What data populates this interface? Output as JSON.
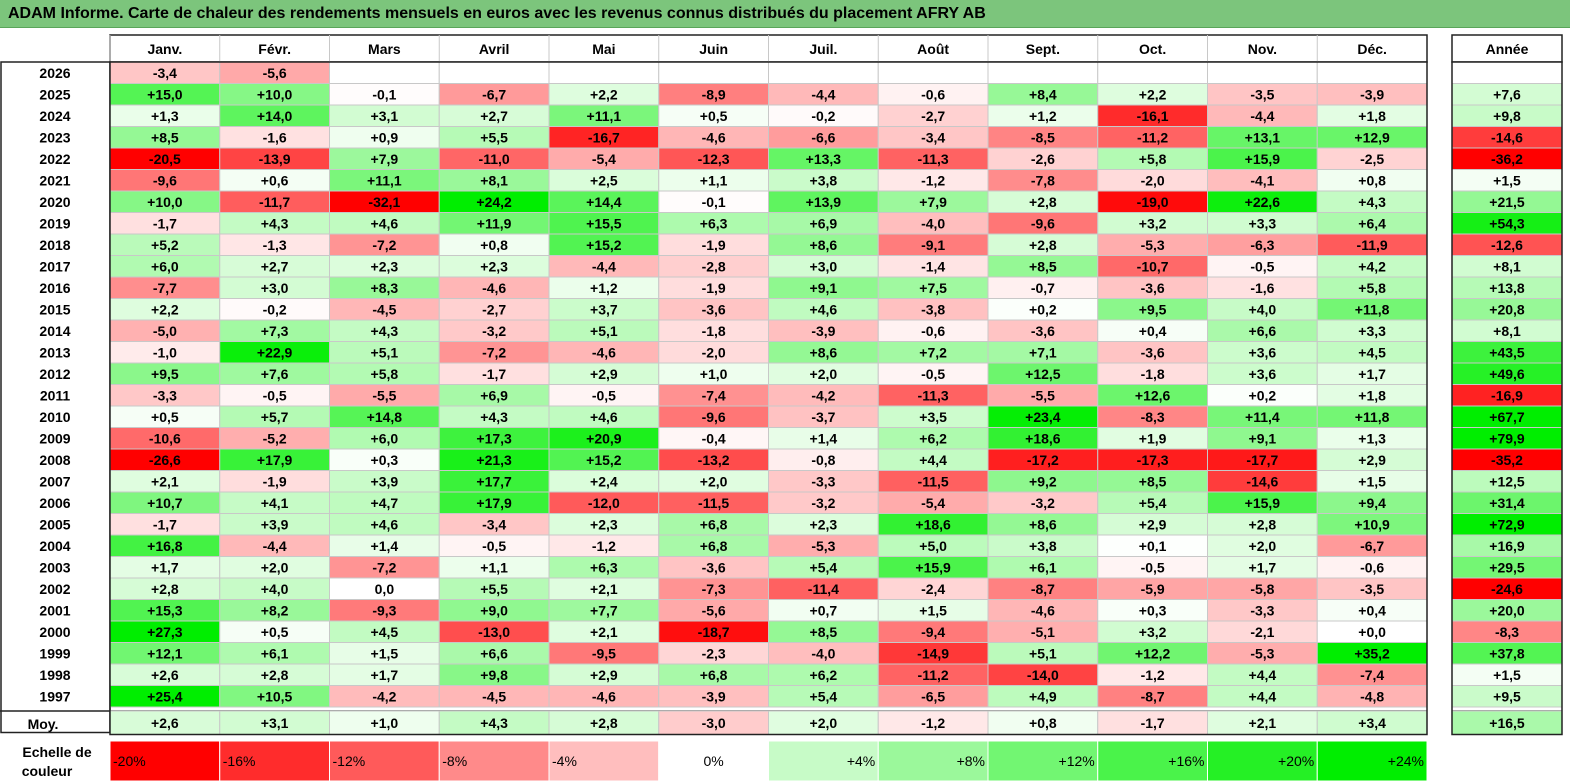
{
  "title": "ADAM Informe. Carte de chaleur des rendements mensuels en euros avec les revenus connus distribués du placement AFRY AB",
  "chart_data": {
    "type": "heatmap",
    "columns": [
      "Janv.",
      "Févr.",
      "Mars",
      "Avril",
      "Mai",
      "Juin",
      "Juil.",
      "Août",
      "Sept.",
      "Oct.",
      "Nov.",
      "Déc."
    ],
    "year_column_label": "Année",
    "rows": [
      {
        "label": "2026",
        "values": [
          "-3,4",
          "-5,6",
          "",
          "",
          "",
          "",
          "",
          "",
          "",
          "",
          "",
          ""
        ],
        "year": ""
      },
      {
        "label": "2025",
        "values": [
          "+15,0",
          "+10,0",
          "-0,1",
          "-6,7",
          "+2,2",
          "-8,9",
          "-4,4",
          "-0,6",
          "+8,4",
          "+2,2",
          "-3,5",
          "-3,9"
        ],
        "year": "+7,6"
      },
      {
        "label": "2024",
        "values": [
          "+1,3",
          "+14,0",
          "+3,1",
          "+2,7",
          "+11,1",
          "+0,5",
          "-0,2",
          "-2,7",
          "+1,2",
          "-16,1",
          "-4,4",
          "+1,8"
        ],
        "year": "+9,8"
      },
      {
        "label": "2023",
        "values": [
          "+8,5",
          "-1,6",
          "+0,9",
          "+5,5",
          "-16,7",
          "-4,6",
          "-6,6",
          "-3,4",
          "-8,5",
          "-11,2",
          "+13,1",
          "+12,9"
        ],
        "year": "-14,6"
      },
      {
        "label": "2022",
        "values": [
          "-20,5",
          "-13,9",
          "+7,9",
          "-11,0",
          "-5,4",
          "-12,3",
          "+13,3",
          "-11,3",
          "-2,6",
          "+5,8",
          "+15,9",
          "-2,5"
        ],
        "year": "-36,2"
      },
      {
        "label": "2021",
        "values": [
          "-9,6",
          "+0,6",
          "+11,1",
          "+8,1",
          "+2,5",
          "+1,1",
          "+3,8",
          "-1,2",
          "-7,8",
          "-2,0",
          "-4,1",
          "+0,8"
        ],
        "year": "+1,5"
      },
      {
        "label": "2020",
        "values": [
          "+10,0",
          "-11,7",
          "-32,1",
          "+24,2",
          "+14,4",
          "-0,1",
          "+13,9",
          "+7,9",
          "+2,8",
          "-19,0",
          "+22,6",
          "+4,3"
        ],
        "year": "+21,5"
      },
      {
        "label": "2019",
        "values": [
          "-1,7",
          "+4,3",
          "+4,6",
          "+11,9",
          "+15,5",
          "+6,3",
          "+6,9",
          "-4,0",
          "-9,6",
          "+3,2",
          "+3,3",
          "+6,4"
        ],
        "year": "+54,3"
      },
      {
        "label": "2018",
        "values": [
          "+5,2",
          "-1,3",
          "-7,2",
          "+0,8",
          "+15,2",
          "-1,9",
          "+8,6",
          "-9,1",
          "+2,8",
          "-5,3",
          "-6,3",
          "-11,9"
        ],
        "year": "-12,6"
      },
      {
        "label": "2017",
        "values": [
          "+6,0",
          "+2,7",
          "+2,3",
          "+2,3",
          "-4,4",
          "-2,8",
          "+3,0",
          "-1,4",
          "+8,5",
          "-10,7",
          "-0,5",
          "+4,2"
        ],
        "year": "+8,1"
      },
      {
        "label": "2016",
        "values": [
          "-7,7",
          "+3,0",
          "+8,3",
          "-4,6",
          "+1,2",
          "-1,9",
          "+9,1",
          "+7,5",
          "-0,7",
          "-3,6",
          "-1,6",
          "+5,8"
        ],
        "year": "+13,8"
      },
      {
        "label": "2015",
        "values": [
          "+2,2",
          "-0,2",
          "-4,5",
          "-2,7",
          "+3,7",
          "-3,6",
          "+4,6",
          "-3,8",
          "+0,2",
          "+9,5",
          "+4,0",
          "+11,8"
        ],
        "year": "+20,8"
      },
      {
        "label": "2014",
        "values": [
          "-5,0",
          "+7,3",
          "+4,3",
          "-3,2",
          "+5,1",
          "-1,8",
          "-3,9",
          "-0,6",
          "-3,6",
          "+0,4",
          "+6,6",
          "+3,3"
        ],
        "year": "+8,1"
      },
      {
        "label": "2013",
        "values": [
          "-1,0",
          "+22,9",
          "+5,1",
          "-7,2",
          "-4,6",
          "-2,0",
          "+8,6",
          "+7,2",
          "+7,1",
          "-3,6",
          "+3,6",
          "+4,5"
        ],
        "year": "+43,5"
      },
      {
        "label": "2012",
        "values": [
          "+9,5",
          "+7,6",
          "+5,8",
          "-1,7",
          "+2,9",
          "+1,0",
          "+2,0",
          "-0,5",
          "+12,5",
          "-1,8",
          "+3,6",
          "+1,7"
        ],
        "year": "+49,6"
      },
      {
        "label": "2011",
        "values": [
          "-3,3",
          "-0,5",
          "-5,5",
          "+6,9",
          "-0,5",
          "-7,4",
          "-4,2",
          "-11,3",
          "-5,5",
          "+12,6",
          "+0,2",
          "+1,8"
        ],
        "year": "-16,9"
      },
      {
        "label": "2010",
        "values": [
          "+0,5",
          "+5,7",
          "+14,8",
          "+4,3",
          "+4,6",
          "-9,6",
          "-3,7",
          "+3,5",
          "+23,4",
          "-8,3",
          "+11,4",
          "+11,8"
        ],
        "year": "+67,7"
      },
      {
        "label": "2009",
        "values": [
          "-10,6",
          "-5,2",
          "+6,0",
          "+17,3",
          "+20,9",
          "-0,4",
          "+1,4",
          "+6,2",
          "+18,6",
          "+1,9",
          "+9,1",
          "+1,3"
        ],
        "year": "+79,9"
      },
      {
        "label": "2008",
        "values": [
          "-26,6",
          "+17,9",
          "+0,3",
          "+21,3",
          "+15,2",
          "-13,2",
          "-0,8",
          "+4,4",
          "-17,2",
          "-17,3",
          "-17,7",
          "+2,9"
        ],
        "year": "-35,2"
      },
      {
        "label": "2007",
        "values": [
          "+2,1",
          "-1,9",
          "+3,9",
          "+17,7",
          "+2,4",
          "+2,0",
          "-3,3",
          "-11,5",
          "+9,2",
          "+8,5",
          "-14,6",
          "+1,5"
        ],
        "year": "+12,5"
      },
      {
        "label": "2006",
        "values": [
          "+10,7",
          "+4,1",
          "+4,7",
          "+17,9",
          "-12,0",
          "-11,5",
          "-3,2",
          "-5,4",
          "-3,2",
          "+5,4",
          "+15,9",
          "+9,4"
        ],
        "year": "+31,4"
      },
      {
        "label": "2005",
        "values": [
          "-1,7",
          "+3,9",
          "+4,6",
          "-3,4",
          "+2,3",
          "+6,8",
          "+2,3",
          "+18,6",
          "+8,6",
          "+2,9",
          "+2,8",
          "+10,9"
        ],
        "year": "+72,9"
      },
      {
        "label": "2004",
        "values": [
          "+16,8",
          "-4,4",
          "+1,4",
          "-0,5",
          "-1,2",
          "+6,8",
          "-5,3",
          "+5,0",
          "+3,8",
          "+0,1",
          "+2,0",
          "-6,7"
        ],
        "year": "+16,9"
      },
      {
        "label": "2003",
        "values": [
          "+1,7",
          "+2,0",
          "-7,2",
          "+1,1",
          "+6,3",
          "-3,6",
          "+5,4",
          "+15,9",
          "+6,1",
          "-0,5",
          "+1,7",
          "-0,6"
        ],
        "year": "+29,5"
      },
      {
        "label": "2002",
        "values": [
          "+2,8",
          "+4,0",
          "0,0",
          "+5,5",
          "+2,1",
          "-7,3",
          "-11,4",
          "-2,4",
          "-8,7",
          "-5,9",
          "-5,8",
          "-3,5"
        ],
        "year": "-24,6"
      },
      {
        "label": "2001",
        "values": [
          "+15,3",
          "+8,2",
          "-9,3",
          "+9,0",
          "+7,7",
          "-5,6",
          "+0,7",
          "+1,5",
          "-4,6",
          "+0,3",
          "-3,3",
          "+0,4"
        ],
        "year": "+20,0"
      },
      {
        "label": "2000",
        "values": [
          "+27,3",
          "+0,5",
          "+4,5",
          "-13,0",
          "+2,1",
          "-18,7",
          "+8,5",
          "-9,4",
          "-5,1",
          "+3,2",
          "-2,1",
          "+0,0"
        ],
        "year": "-8,3"
      },
      {
        "label": "1999",
        "values": [
          "+12,1",
          "+6,1",
          "+1,5",
          "+6,6",
          "-9,5",
          "-2,3",
          "-4,0",
          "-14,9",
          "+5,1",
          "+12,2",
          "-5,3",
          "+35,2"
        ],
        "year": "+37,8"
      },
      {
        "label": "1998",
        "values": [
          "+2,6",
          "+2,8",
          "+1,7",
          "+9,8",
          "+2,9",
          "+6,8",
          "+6,2",
          "-11,2",
          "-14,0",
          "-1,2",
          "+4,4",
          "-7,4"
        ],
        "year": "+1,5"
      },
      {
        "label": "1997",
        "values": [
          "+25,4",
          "+10,5",
          "-4,2",
          "-4,5",
          "-4,6",
          "-3,9",
          "+5,4",
          "-6,5",
          "+4,9",
          "-8,7",
          "+4,4",
          "-4,8"
        ],
        "year": "+9,5"
      }
    ],
    "average": {
      "label": "Moy.",
      "values": [
        "+2,6",
        "+3,1",
        "+1,0",
        "+4,3",
        "+2,8",
        "-3,0",
        "+2,0",
        "-1,2",
        "+0,8",
        "-1,7",
        "+2,1",
        "+3,4"
      ],
      "year": "+16,5"
    },
    "legend": {
      "label_line1": "Echelle de",
      "label_line2": "couleur",
      "steps": [
        {
          "label": "-20%",
          "value": -20
        },
        {
          "label": "-16%",
          "value": -16
        },
        {
          "label": "-12%",
          "value": -12
        },
        {
          "label": "-8%",
          "value": -8
        },
        {
          "label": "-4%",
          "value": -4
        },
        {
          "label": "0%",
          "value": 0
        },
        {
          "label": "+4%",
          "value": 4
        },
        {
          "label": "+8%",
          "value": 8
        },
        {
          "label": "+12%",
          "value": 12
        },
        {
          "label": "+16%",
          "value": 16
        },
        {
          "label": "+20%",
          "value": 20
        },
        {
          "label": "+24%",
          "value": 24
        }
      ]
    },
    "colors": {
      "neg_max": "#ff0000",
      "pos_max": "#00ee00",
      "neutral": "#ffffff",
      "grid": "#c8c8c8"
    },
    "scale_limits": {
      "monthly": [
        -20,
        24
      ],
      "annual": [
        -20,
        60
      ]
    }
  }
}
